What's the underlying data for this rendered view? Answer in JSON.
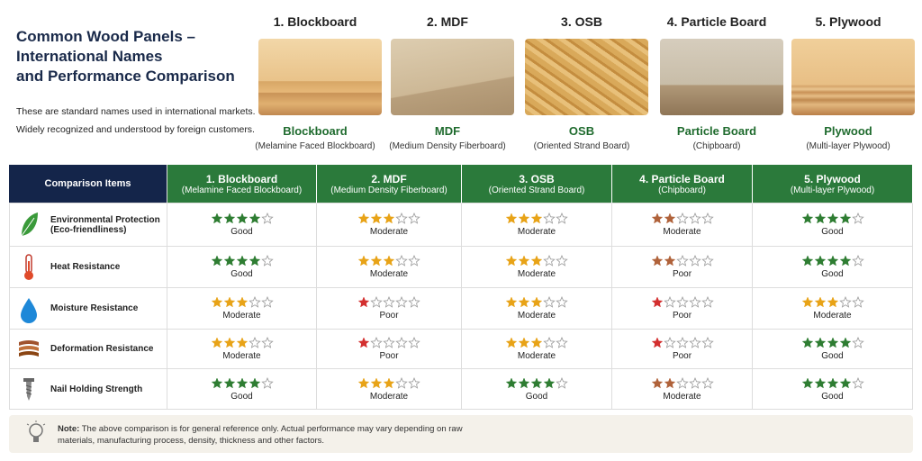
{
  "header": {
    "title_lines": [
      "Common Wood Panels –",
      "International Names",
      "and Performance Comparison"
    ],
    "description_lines": [
      "These are standard names used in international markets.",
      "Widely recognized and understood by foreign customers."
    ]
  },
  "panels": [
    {
      "heading": "1. Blockboard",
      "name": "Blockboard",
      "subname": "(Melamine Faced Blockboard)"
    },
    {
      "heading": "2. MDF",
      "name": "MDF",
      "subname": "(Medium Density Fiberboard)"
    },
    {
      "heading": "3. OSB",
      "name": "OSB",
      "subname": "(Oriented Strand Board)"
    },
    {
      "heading": "4. Particle Board",
      "name": "Particle Board",
      "subname": "(Chipboard)"
    },
    {
      "heading": "5. Plywood",
      "name": "Plywood",
      "subname": "(Multi-layer Plywood)"
    }
  ],
  "table": {
    "corner": "Comparison Items",
    "columns": [
      {
        "title": "1. Blockboard",
        "subtitle": "(Melamine Faced Blockboard)"
      },
      {
        "title": "2. MDF",
        "subtitle": "(Medium Density Fiberboard)"
      },
      {
        "title": "3. OSB",
        "subtitle": "(Oriented Strand Board)"
      },
      {
        "title": "4. Particle Board",
        "subtitle": "(Chipboard)"
      },
      {
        "title": "5. Plywood",
        "subtitle": "(Multi-layer Plywood)"
      }
    ],
    "max_stars": 5,
    "star_colors": {
      "1": "#d32f2f",
      "2": "#b0623a",
      "3": "#e8a317",
      "4": "#2e7d32"
    },
    "rows": [
      {
        "label": "Environmental Protection (Eco-friendliness)",
        "ratings": [
          4,
          3,
          3,
          2,
          4
        ],
        "verdicts": [
          "Good",
          "Moderate",
          "Moderate",
          "Moderate",
          "Good"
        ]
      },
      {
        "label": "Heat Resistance",
        "ratings": [
          4,
          3,
          3,
          2,
          4
        ],
        "verdicts": [
          "Good",
          "Moderate",
          "Moderate",
          "Poor",
          "Good"
        ]
      },
      {
        "label": "Moisture Resistance",
        "ratings": [
          3,
          1,
          3,
          1,
          3
        ],
        "verdicts": [
          "Moderate",
          "Poor",
          "Moderate",
          "Poor",
          "Moderate"
        ]
      },
      {
        "label": "Deformation Resistance",
        "ratings": [
          3,
          1,
          3,
          1,
          4
        ],
        "verdicts": [
          "Moderate",
          "Poor",
          "Moderate",
          "Poor",
          "Good"
        ]
      },
      {
        "label": "Nail Holding Strength",
        "ratings": [
          4,
          3,
          4,
          2,
          4
        ],
        "verdicts": [
          "Good",
          "Moderate",
          "Good",
          "Moderate",
          "Good"
        ]
      }
    ]
  },
  "note": {
    "label": "Note:",
    "text": "The above comparison is for general reference only. Actual performance may vary depending on raw materials, manufacturing process, density, thickness and other factors."
  }
}
